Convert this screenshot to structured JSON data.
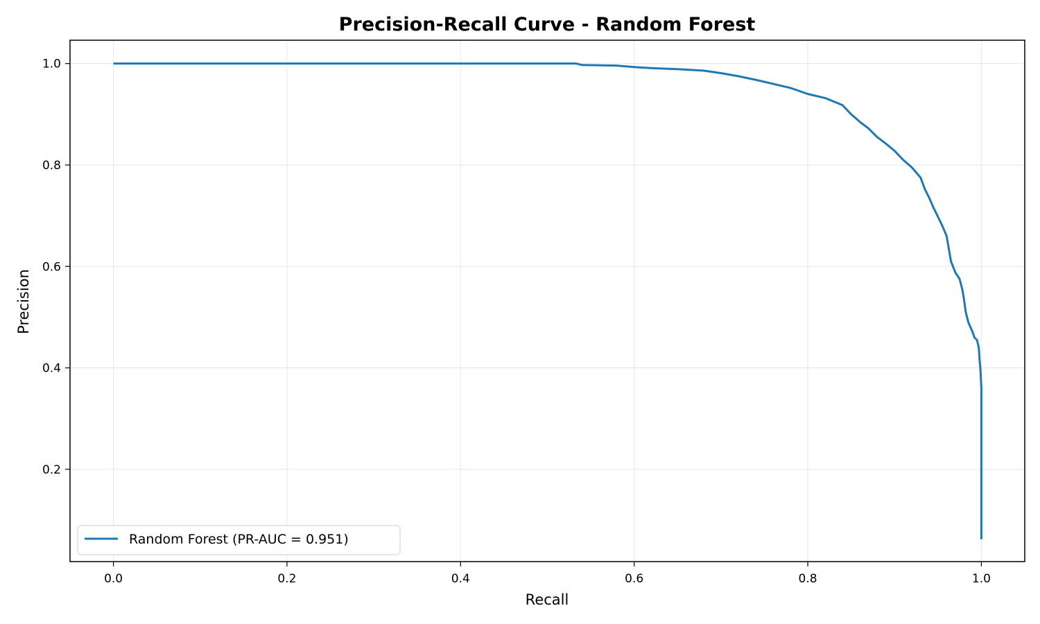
{
  "chart_data": {
    "type": "line",
    "title": "Precision-Recall Curve - Random Forest",
    "xlabel": "Recall",
    "ylabel": "Precision",
    "xlim": [
      -0.05,
      1.05
    ],
    "ylim": [
      0.018,
      1.046
    ],
    "x_ticks": [
      0.0,
      0.2,
      0.4,
      0.6,
      0.8,
      1.0
    ],
    "x_tick_labels": [
      "0.0",
      "0.2",
      "0.4",
      "0.6",
      "0.8",
      "1.0"
    ],
    "y_ticks": [
      0.2,
      0.4,
      0.6,
      0.8,
      1.0
    ],
    "y_tick_labels": [
      "0.2",
      "0.4",
      "0.6",
      "0.8",
      "1.0"
    ],
    "grid": true,
    "legend_position": "lower-left",
    "series": [
      {
        "name": "Random Forest (PR-AUC = 0.951)",
        "color": "#1f77b4",
        "x": [
          0.0,
          0.2,
          0.4,
          0.533,
          0.54,
          0.58,
          0.6,
          0.62,
          0.65,
          0.68,
          0.7,
          0.72,
          0.74,
          0.76,
          0.78,
          0.8,
          0.82,
          0.84,
          0.85,
          0.86,
          0.87,
          0.88,
          0.89,
          0.9,
          0.91,
          0.92,
          0.93,
          0.935,
          0.94,
          0.945,
          0.95,
          0.955,
          0.96,
          0.962,
          0.965,
          0.97,
          0.975,
          0.978,
          0.98,
          0.982,
          0.985,
          0.99,
          0.992,
          0.995,
          0.997,
          0.998,
          0.999,
          1.0,
          1.0,
          1.0,
          1.0
        ],
        "y": [
          1.0,
          1.0,
          1.0,
          1.0,
          0.997,
          0.996,
          0.993,
          0.991,
          0.989,
          0.986,
          0.981,
          0.975,
          0.968,
          0.96,
          0.952,
          0.94,
          0.932,
          0.918,
          0.9,
          0.885,
          0.872,
          0.855,
          0.842,
          0.828,
          0.81,
          0.795,
          0.775,
          0.752,
          0.735,
          0.715,
          0.698,
          0.68,
          0.66,
          0.64,
          0.61,
          0.588,
          0.575,
          0.555,
          0.535,
          0.51,
          0.49,
          0.47,
          0.46,
          0.455,
          0.44,
          0.415,
          0.395,
          0.36,
          0.25,
          0.15,
          0.062
        ]
      }
    ]
  }
}
